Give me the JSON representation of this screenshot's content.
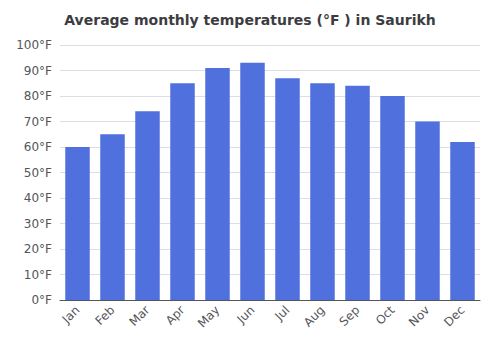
{
  "chart_data": {
    "type": "bar",
    "title": "Average monthly temperatures (°F ) in Saurikh",
    "categories": [
      "Jan",
      "Feb",
      "Mar",
      "Apr",
      "May",
      "Jun",
      "Jul",
      "Aug",
      "Sep",
      "Oct",
      "Nov",
      "Dec"
    ],
    "values": [
      60,
      65,
      74,
      85,
      91,
      93,
      87,
      85,
      84,
      80,
      70,
      62
    ],
    "ylim": [
      0,
      100
    ],
    "yticks": [
      {
        "value": 0,
        "label": "0°F"
      },
      {
        "value": 10,
        "label": "10°F"
      },
      {
        "value": 20,
        "label": "20°F"
      },
      {
        "value": 30,
        "label": "30°F"
      },
      {
        "value": 40,
        "label": "40°F"
      },
      {
        "value": 50,
        "label": "50°F"
      },
      {
        "value": 60,
        "label": "60°F"
      },
      {
        "value": 70,
        "label": "70°F"
      },
      {
        "value": 80,
        "label": "80°F"
      },
      {
        "value": 90,
        "label": "90°F"
      },
      {
        "value": 100,
        "label": "100°F"
      }
    ],
    "grid": true
  }
}
